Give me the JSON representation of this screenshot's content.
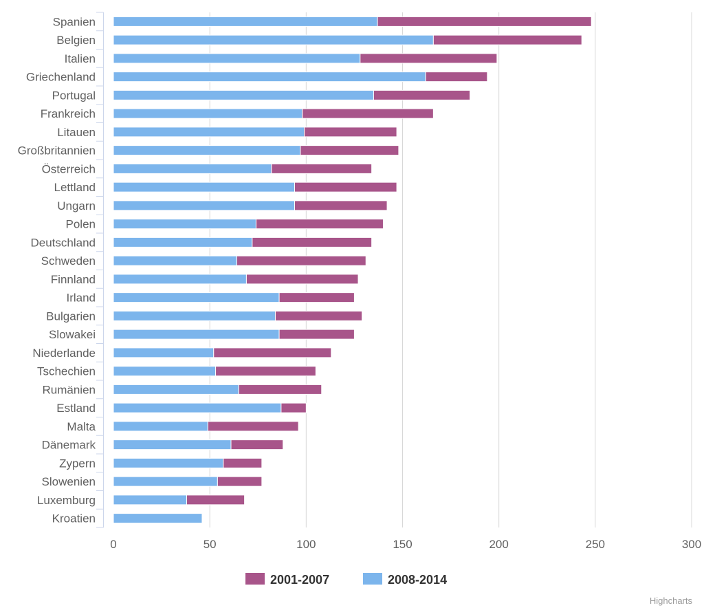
{
  "chart_data": {
    "type": "bar",
    "stacked": true,
    "orientation": "horizontal",
    "categories": [
      "Spanien",
      "Belgien",
      "Italien",
      "Griechenland",
      "Portugal",
      "Frankreich",
      "Litauen",
      "Großbritannien",
      "Österreich",
      "Lettland",
      "Ungarn",
      "Polen",
      "Deutschland",
      "Schweden",
      "Finnland",
      "Irland",
      "Bulgarien",
      "Slowakei",
      "Niederlande",
      "Tschechien",
      "Rumänien",
      "Estland",
      "Malta",
      "Dänemark",
      "Zypern",
      "Slowenien",
      "Luxemburg",
      "Kroatien"
    ],
    "series": [
      {
        "name": "2008-2014",
        "color": "#7cb5ec",
        "values": [
          137,
          166,
          128,
          162,
          135,
          98,
          99,
          97,
          82,
          94,
          94,
          74,
          72,
          64,
          69,
          86,
          84,
          86,
          52,
          53,
          65,
          87,
          49,
          61,
          57,
          54,
          38,
          46
        ]
      },
      {
        "name": "2001-2007",
        "color": "#a8558a",
        "values": [
          111,
          77,
          71,
          32,
          50,
          68,
          48,
          51,
          52,
          53,
          48,
          66,
          62,
          67,
          58,
          39,
          45,
          39,
          61,
          52,
          43,
          13,
          47,
          27,
          20,
          23,
          30,
          0
        ]
      }
    ],
    "xlim": [
      0,
      300
    ],
    "ticks": [
      0,
      50,
      100,
      150,
      200,
      250,
      300
    ],
    "grid": true,
    "legend": {
      "position": "bottom-center",
      "items": [
        "2001-2007",
        "2008-2014"
      ]
    }
  },
  "credits": "Highcharts"
}
